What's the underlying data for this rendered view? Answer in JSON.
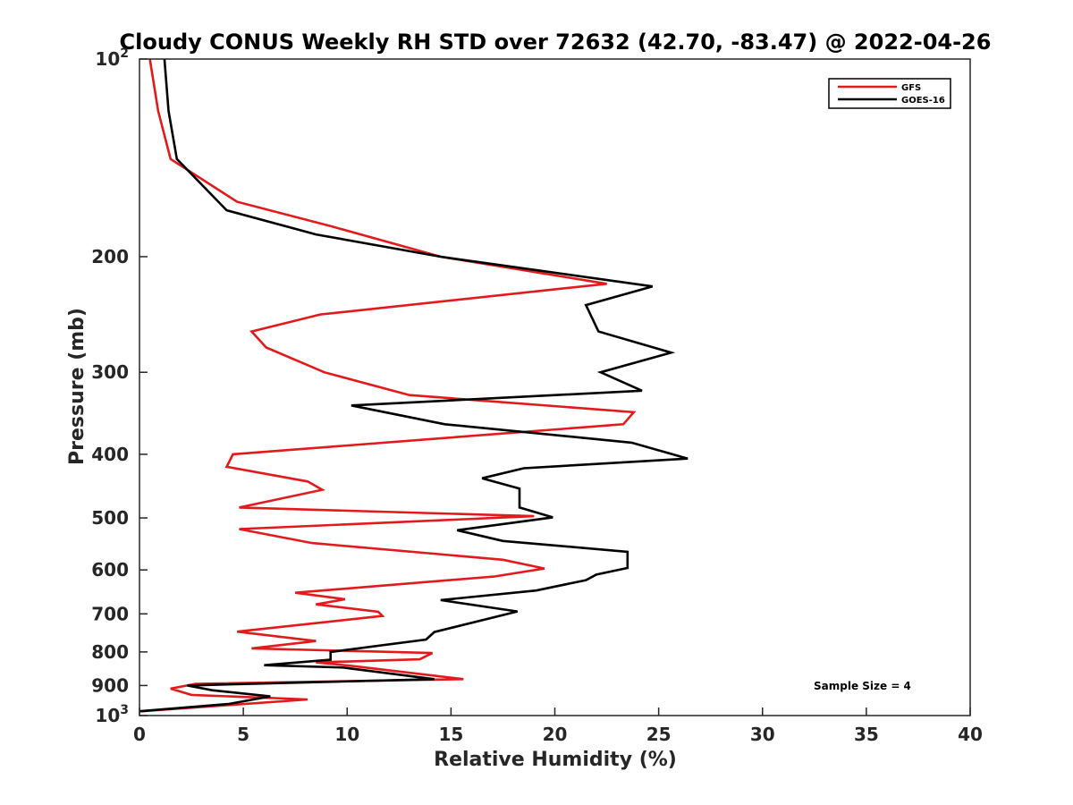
{
  "chart_data": {
    "type": "line",
    "title": "Cloudy CONUS Weekly RH STD over 72632 (42.70, -83.47) @ 2022-04-26",
    "xlabel": "Relative Humidity (%)",
    "ylabel": "Pressure (mb)",
    "xlim": [
      0,
      40
    ],
    "ylim": [
      100,
      1000
    ],
    "y_scale": "log",
    "y_reversed": true,
    "grid": false,
    "legend_position": "top-right",
    "note": "Sample Size = 4",
    "x_ticks": [
      {
        "value": 0,
        "label": "0"
      },
      {
        "value": 5,
        "label": "5"
      },
      {
        "value": 10,
        "label": "10"
      },
      {
        "value": 15,
        "label": "15"
      },
      {
        "value": 20,
        "label": "20"
      },
      {
        "value": 25,
        "label": "25"
      },
      {
        "value": 30,
        "label": "30"
      },
      {
        "value": 35,
        "label": "35"
      },
      {
        "value": 40,
        "label": "40"
      }
    ],
    "y_ticks": [
      {
        "value": 100,
        "label": "10",
        "sup": "2"
      },
      {
        "value": 200,
        "label": "200",
        "sup": ""
      },
      {
        "value": 300,
        "label": "300",
        "sup": ""
      },
      {
        "value": 400,
        "label": "400",
        "sup": ""
      },
      {
        "value": 500,
        "label": "500",
        "sup": ""
      },
      {
        "value": 600,
        "label": "600",
        "sup": ""
      },
      {
        "value": 700,
        "label": "700",
        "sup": ""
      },
      {
        "value": 800,
        "label": "800",
        "sup": ""
      },
      {
        "value": 900,
        "label": "900",
        "sup": ""
      },
      {
        "value": 1000,
        "label": "10",
        "sup": "3"
      }
    ],
    "series": [
      {
        "name": "GFS",
        "color": "#e31a1c",
        "points": [
          [
            0.5,
            100
          ],
          [
            0.9,
            120
          ],
          [
            1.5,
            142
          ],
          [
            4.7,
            165
          ],
          [
            9.3,
            180
          ],
          [
            14.5,
            200
          ],
          [
            22.5,
            220
          ],
          [
            8.7,
            245
          ],
          [
            5.4,
            260
          ],
          [
            6.1,
            275
          ],
          [
            8.9,
            300
          ],
          [
            13.0,
            325
          ],
          [
            23.8,
            345
          ],
          [
            23.3,
            360
          ],
          [
            4.5,
            400
          ],
          [
            4.2,
            418
          ],
          [
            8.1,
            440
          ],
          [
            8.8,
            453
          ],
          [
            4.8,
            482
          ],
          [
            19.0,
            497
          ],
          [
            4.8,
            520
          ],
          [
            8.3,
            546
          ],
          [
            17.5,
            579
          ],
          [
            19.5,
            597
          ],
          [
            17.1,
            614
          ],
          [
            7.5,
            650
          ],
          [
            9.9,
            665
          ],
          [
            8.5,
            677
          ],
          [
            11.5,
            695
          ],
          [
            11.7,
            705
          ],
          [
            4.7,
            745
          ],
          [
            8.5,
            770
          ],
          [
            5.4,
            790
          ],
          [
            14.1,
            803
          ],
          [
            13.5,
            821
          ],
          [
            8.5,
            830
          ],
          [
            10.2,
            840
          ],
          [
            15.6,
            880
          ],
          [
            2.7,
            895
          ],
          [
            1.5,
            910
          ],
          [
            2.5,
            930
          ],
          [
            8.1,
            945
          ],
          [
            0.1,
            985
          ]
        ]
      },
      {
        "name": "GOES-16",
        "color": "#000000",
        "points": [
          [
            1.2,
            100
          ],
          [
            1.4,
            120
          ],
          [
            1.8,
            142
          ],
          [
            4.2,
            170
          ],
          [
            8.5,
            185
          ],
          [
            14.5,
            200
          ],
          [
            24.7,
            222
          ],
          [
            21.5,
            237
          ],
          [
            22.1,
            260
          ],
          [
            25.6,
            280
          ],
          [
            22.2,
            300
          ],
          [
            24.2,
            320
          ],
          [
            10.2,
            337
          ],
          [
            14.7,
            360
          ],
          [
            23.7,
            384
          ],
          [
            26.4,
            406
          ],
          [
            18.5,
            420
          ],
          [
            16.5,
            435
          ],
          [
            18.3,
            451
          ],
          [
            18.3,
            482
          ],
          [
            19.9,
            499
          ],
          [
            15.3,
            522
          ],
          [
            17.5,
            542
          ],
          [
            23.5,
            563
          ],
          [
            23.5,
            596
          ],
          [
            22.0,
            610
          ],
          [
            21.5,
            622
          ],
          [
            19.1,
            645
          ],
          [
            14.5,
            667
          ],
          [
            18.2,
            694
          ],
          [
            14.2,
            746
          ],
          [
            13.8,
            766
          ],
          [
            9.2,
            800
          ],
          [
            9.2,
            822
          ],
          [
            6.0,
            838
          ],
          [
            9.8,
            845
          ],
          [
            14.2,
            880
          ],
          [
            2.3,
            900
          ],
          [
            3.5,
            915
          ],
          [
            6.3,
            935
          ],
          [
            4.3,
            960
          ],
          [
            0.0,
            985
          ]
        ]
      }
    ]
  }
}
